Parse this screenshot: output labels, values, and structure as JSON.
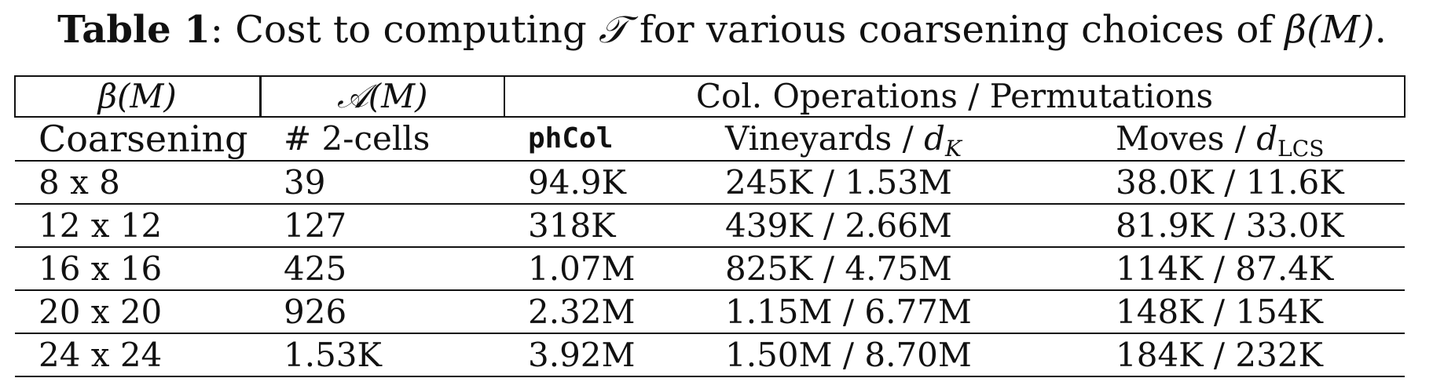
{
  "caption": {
    "label": "Table 1",
    "text_before": ": Cost to computing ",
    "symbol": "𝒯",
    "text_after": " for various coarsening choices of ",
    "beta": "β(M)",
    "end": "."
  },
  "table": {
    "group_headers": [
      "β(M)",
      "𝒜(M)",
      "Col. Operations / Permutations"
    ],
    "sub_headers": {
      "coarsening": "Coarsening",
      "cells": "# 2-cells",
      "phcol": "phCol",
      "vineyards_prefix": "Vineyards / ",
      "vineyards_var": "d",
      "vineyards_sub": "K",
      "moves_prefix": "Moves / ",
      "moves_var": "d",
      "moves_sub": "LCS"
    },
    "rows": [
      [
        "8 x 8",
        "39",
        "94.9K",
        "245K / 1.53M",
        "38.0K / 11.6K"
      ],
      [
        "12 x 12",
        "127",
        "318K",
        "439K / 2.66M",
        "81.9K / 33.0K"
      ],
      [
        "16 x 16",
        "425",
        "1.07M",
        "825K / 4.75M",
        "114K / 87.4K"
      ],
      [
        "20 x 20",
        "926",
        "2.32M",
        "1.15M / 6.77M",
        "148K / 154K"
      ],
      [
        "24 x 24",
        "1.53K",
        "3.92M",
        "1.50M / 8.70M",
        "184K / 232K"
      ]
    ]
  }
}
